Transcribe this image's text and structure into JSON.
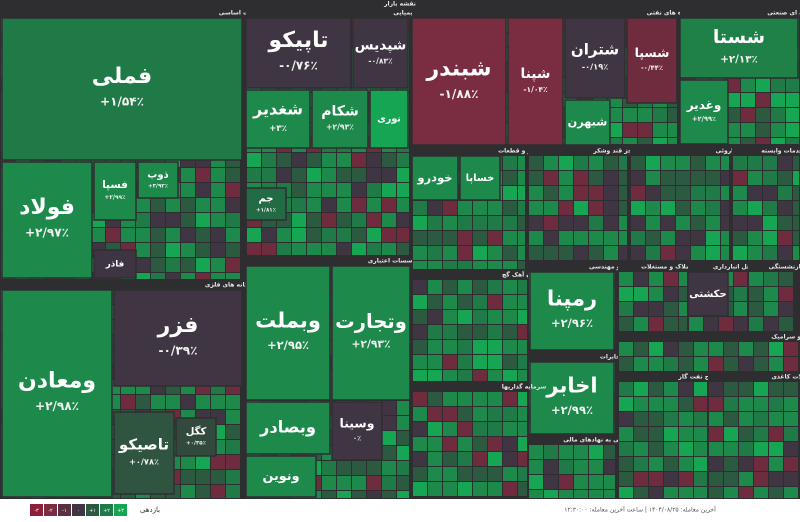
{
  "title": "نقشه بازار",
  "sectors": [
    {
      "name": "فلزات اساسی",
      "tiles": [
        {
          "name": "فملی",
          "change": "+۱/۵۴٪",
          "color": "#1f7a47"
        },
        {
          "name": "فولاد",
          "change": "+۲/۹۷٪",
          "color": "#1d8a4c"
        },
        {
          "name": "فسپا",
          "change": "+۲/۹۹٪",
          "color": "#1d8a4c"
        },
        {
          "name": "ذوب",
          "change": "+۳/۹۳٪",
          "color": "#1d8a4c"
        },
        {
          "name": "فاذر",
          "color": "#3f3542"
        }
      ]
    },
    {
      "name": "استخراج کانه های فلزی",
      "tiles": [
        {
          "name": "ومعادن",
          "change": "+۲/۹۸٪",
          "color": "#1d8a4c"
        },
        {
          "name": "فزر",
          "change": "-۰/۳۹٪",
          "color": "#403542"
        },
        {
          "name": "تاصیکو",
          "change": "+۰/۷۸٪",
          "color": "#2f5440"
        },
        {
          "name": "کگل",
          "change": "+۰/۳۵٪",
          "color": "#324a3d"
        }
      ]
    },
    {
      "name": "شیمیایی",
      "tiles": [
        {
          "name": "تاپیکو",
          "change": "-۰/۷۶٪",
          "color": "#403542"
        },
        {
          "name": "شپدیس",
          "change": "-۰/۸۳٪",
          "color": "#403542"
        },
        {
          "name": "شغدیر",
          "change": "+۳٪",
          "color": "#1d8a4c"
        },
        {
          "name": "شکام",
          "change": "+۲/۹۳٪",
          "color": "#1d8a4c"
        },
        {
          "name": "نوری",
          "color": "#16a552"
        },
        {
          "name": "جم",
          "change": "+۱/۸۱٪",
          "color": "#226b45"
        }
      ]
    },
    {
      "name": "بانکها و موسسات اعتباری",
      "tiles": [
        {
          "name": "وبملت",
          "change": "+۲/۹۵٪",
          "color": "#1d8a4c"
        },
        {
          "name": "وتجارت",
          "change": "+۲/۹۳٪",
          "color": "#1d8a4c"
        },
        {
          "name": "وبصادر",
          "color": "#1d8a4c"
        },
        {
          "name": "وسینا",
          "change": "۰٪",
          "color": "#403542"
        },
        {
          "name": "ونوین",
          "color": "#1d8a4c"
        }
      ]
    },
    {
      "name": "فراورده های نفتی",
      "tiles": [
        {
          "name": "شبندر",
          "change": "-۱/۸۸٪",
          "color": "#7a2d40"
        },
        {
          "name": "شپنا",
          "change": "-۱/۰۴٪",
          "color": "#7a2d40"
        },
        {
          "name": "شتران",
          "change": "-۰/۱۹٪",
          "color": "#403542"
        },
        {
          "name": "شسپا",
          "change": "-۰/۴۴٪",
          "color": "#6e2c3e"
        },
        {
          "name": "شبهرن",
          "color": "#1d8a4c"
        }
      ]
    },
    {
      "name": "چندرشته ای صنعتی",
      "tiles": [
        {
          "name": "شستا",
          "change": "+۲/۱۳٪",
          "color": "#1f8048"
        },
        {
          "name": "وغدیر",
          "change": "+۲/۹۹٪",
          "color": "#1d8a4c"
        }
      ]
    },
    {
      "name": "خودرو و قطعات",
      "tiles": [
        {
          "name": "خودرو",
          "color": "#1d8a4c"
        },
        {
          "name": "خساپا",
          "color": "#1d8a4c"
        }
      ]
    },
    {
      "name": "غذایی بجز قند وشکر",
      "tiles": []
    },
    {
      "name": "داروئی",
      "tiles": []
    },
    {
      "name": "زراعت و خدمات وابسته",
      "tiles": []
    },
    {
      "name": "سیمان آهک گچ",
      "tiles": []
    },
    {
      "name": "فنی و مهندسی",
      "tiles": [
        {
          "name": "رمپنا",
          "change": "+۲/۹۶٪",
          "color": "#1d8a4c"
        }
      ]
    },
    {
      "name": "مخابرات",
      "tiles": [
        {
          "name": "اخابر",
          "change": "+۲/۹۹٪",
          "color": "#1d8a4c"
        }
      ]
    },
    {
      "name": "سرمایه گذاریها",
      "tiles": []
    },
    {
      "name": "فعالیتهای کمکی به نهادهای مالی",
      "tiles": []
    },
    {
      "name": "انبوه سازی املاک و مستغلات",
      "tiles": []
    },
    {
      "name": "حمل و نقل انبارداری",
      "tiles": [
        {
          "name": "حکشتی",
          "color": "#403542"
        }
      ]
    },
    {
      "name": "بیمه و بازنشستگی",
      "tiles": []
    },
    {
      "name": "کاشی و سرامیک",
      "tiles": []
    },
    {
      "name": "استخراج نفت گاز",
      "tiles": []
    },
    {
      "name": "محصولات کاغذی",
      "tiles": []
    }
  ],
  "legend": {
    "title": "بازدهی",
    "steps": [
      {
        "label": "-۳",
        "color": "#8c1f3a"
      },
      {
        "label": "-۲",
        "color": "#7a2d40"
      },
      {
        "label": "-۱",
        "color": "#5a3040"
      },
      {
        "label": "۰",
        "color": "#403542"
      },
      {
        "label": "+۱",
        "color": "#2b5a40"
      },
      {
        "label": "+۲",
        "color": "#1f7a47"
      },
      {
        "label": "+۳",
        "color": "#16a552"
      }
    ]
  },
  "footer": {
    "last_trade": "آخرین معامله: ۱۴۰۴/۰۸/۲۵ | ساعت آخرین معامله: ۱۲:۳۰:۰۰"
  }
}
